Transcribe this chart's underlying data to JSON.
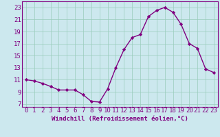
{
  "x": [
    0,
    1,
    2,
    3,
    4,
    5,
    6,
    7,
    8,
    9,
    10,
    11,
    12,
    13,
    14,
    15,
    16,
    17,
    18,
    19,
    20,
    21,
    22,
    23
  ],
  "y": [
    11.0,
    10.8,
    10.4,
    9.9,
    9.3,
    9.3,
    9.3,
    8.5,
    7.4,
    7.3,
    9.5,
    13.0,
    16.0,
    18.0,
    18.5,
    21.5,
    22.5,
    23.0,
    22.2,
    20.2,
    17.0,
    16.2,
    12.8,
    12.2
  ],
  "line_color": "#800080",
  "marker": "D",
  "markersize": 2.2,
  "linewidth": 1.0,
  "bg_color": "#cce8ee",
  "grid_color": "#99ccbb",
  "xlabel": "Windchill (Refroidissement éolien,°C)",
  "xlim": [
    -0.5,
    23.5
  ],
  "ylim": [
    6.5,
    24.0
  ],
  "yticks": [
    7,
    9,
    11,
    13,
    15,
    17,
    19,
    21,
    23
  ],
  "xticks": [
    0,
    1,
    2,
    3,
    4,
    5,
    6,
    7,
    8,
    9,
    10,
    11,
    12,
    13,
    14,
    15,
    16,
    17,
    18,
    19,
    20,
    21,
    22,
    23
  ],
  "xlabel_fontsize": 6.5,
  "tick_fontsize": 6.5,
  "tick_color": "#800080",
  "label_color": "#800080",
  "spine_color": "#800080"
}
